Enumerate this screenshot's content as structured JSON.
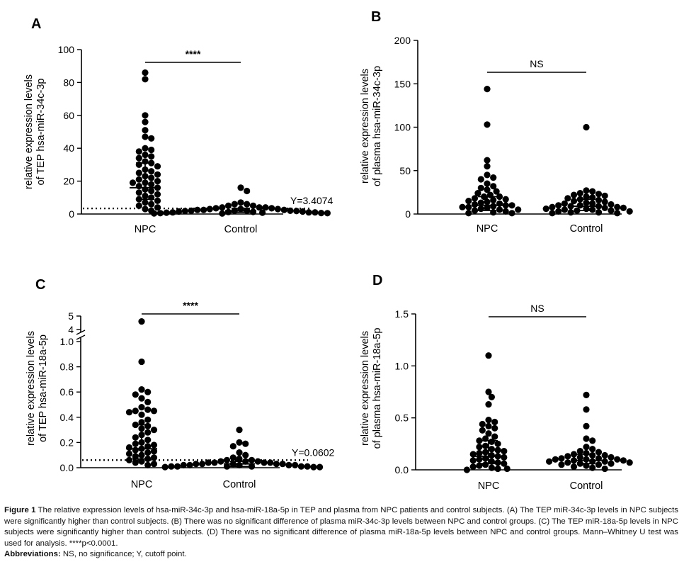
{
  "chart_data": [
    {
      "panel": "A",
      "type": "scatter",
      "ylabel_lines": [
        "relative expression levels",
        "of TEP hsa-miR-34c-3p"
      ],
      "ylim": [
        0,
        100
      ],
      "yticks": [
        0,
        20,
        40,
        60,
        80,
        100
      ],
      "categories": [
        "NPC",
        "Control"
      ],
      "cutoff": {
        "value": 3.4074,
        "label": "Y=3.4074"
      },
      "significance": "****",
      "series": [
        {
          "name": "NPC",
          "values": [
            86,
            82,
            60,
            56,
            51,
            47,
            46,
            40,
            39,
            38,
            36,
            35,
            34,
            32,
            31,
            30,
            29,
            27,
            26,
            25,
            24,
            23,
            22,
            21,
            20,
            19,
            19,
            18,
            17,
            16,
            15,
            14,
            13,
            12,
            11,
            10,
            9,
            8,
            7,
            6,
            5,
            4,
            3,
            2
          ],
          "median": 16,
          "q1": 9,
          "q3": 31
        },
        {
          "name": "Control",
          "values": [
            16,
            14,
            7,
            6,
            6,
            5,
            5,
            4,
            4,
            4,
            3.5,
            3.5,
            3,
            3,
            3,
            2.5,
            2.5,
            2.5,
            2,
            2,
            2,
            2,
            1.8,
            1.8,
            1.5,
            1.5,
            1.3,
            1.2,
            1,
            1,
            1,
            0.8,
            0.8,
            0.6,
            0.5,
            0.5,
            0.4,
            0.3
          ],
          "median": 2,
          "q1": 1,
          "q3": 3.5
        }
      ]
    },
    {
      "panel": "B",
      "type": "scatter",
      "ylabel_lines": [
        "relative expression levels",
        "of plasma hsa-miR-34c-3p"
      ],
      "ylim": [
        0,
        200
      ],
      "yticks": [
        0,
        50,
        100,
        150,
        200
      ],
      "categories": [
        "NPC",
        "Control"
      ],
      "significance": "NS",
      "series": [
        {
          "name": "NPC",
          "values": [
            144,
            103,
            62,
            55,
            45,
            42,
            40,
            35,
            32,
            30,
            28,
            26,
            24,
            22,
            20,
            20,
            18,
            17,
            16,
            15,
            14,
            13,
            12,
            11,
            10,
            10,
            9,
            8,
            8,
            7,
            6,
            5,
            5,
            4,
            3,
            2,
            1,
            1
          ],
          "median": 10,
          "q1": 4,
          "q3": 20
        },
        {
          "name": "Control",
          "values": [
            100,
            27,
            26,
            24,
            23,
            22,
            21,
            20,
            19,
            18,
            17,
            16,
            15,
            14,
            13,
            12,
            12,
            11,
            10,
            10,
            9,
            9,
            8,
            8,
            7,
            7,
            6,
            6,
            5,
            5,
            4,
            4,
            3,
            3,
            2,
            2,
            1,
            1
          ],
          "median": 9,
          "q1": 4,
          "q3": 17
        }
      ]
    },
    {
      "panel": "C",
      "type": "scatter",
      "ylabel_lines": [
        "relative expression levels",
        "of TEP hsa-miR-18a-5p"
      ],
      "ylim": [
        0,
        5
      ],
      "yticks_lower": [
        0.0,
        0.2,
        0.4,
        0.6,
        0.8,
        1.0
      ],
      "yticks_upper": [
        4,
        5
      ],
      "axis_break": [
        1.0,
        4.0
      ],
      "categories": [
        "NPC",
        "Control"
      ],
      "cutoff": {
        "value": 0.0602,
        "label": "Y=0.0602"
      },
      "significance": "****",
      "series": [
        {
          "name": "NPC",
          "values": [
            4.6,
            0.84,
            0.62,
            0.6,
            0.58,
            0.55,
            0.52,
            0.48,
            0.46,
            0.45,
            0.45,
            0.44,
            0.42,
            0.38,
            0.36,
            0.34,
            0.33,
            0.31,
            0.3,
            0.28,
            0.26,
            0.24,
            0.22,
            0.2,
            0.19,
            0.18,
            0.17,
            0.16,
            0.15,
            0.14,
            0.13,
            0.12,
            0.11,
            0.1,
            0.09,
            0.08,
            0.07,
            0.06,
            0.05,
            0.04,
            0.03,
            0.02
          ],
          "median": 0.15,
          "q1": 0.07,
          "q3": 0.34
        },
        {
          "name": "Control",
          "values": [
            0.3,
            0.2,
            0.19,
            0.17,
            0.12,
            0.1,
            0.08,
            0.07,
            0.06,
            0.06,
            0.05,
            0.05,
            0.05,
            0.04,
            0.04,
            0.04,
            0.04,
            0.03,
            0.03,
            0.03,
            0.03,
            0.03,
            0.02,
            0.02,
            0.02,
            0.02,
            0.02,
            0.01,
            0.01,
            0.01,
            0.01,
            0.01,
            0.01,
            0.005,
            0.005,
            0.005
          ],
          "median": 0.03,
          "q1": 0.01,
          "q3": 0.05
        }
      ]
    },
    {
      "panel": "D",
      "type": "scatter",
      "ylabel_lines": [
        "relative expression levels",
        "of plasma hsa-miR-18a-5p"
      ],
      "ylim": [
        0,
        1.5
      ],
      "yticks": [
        0.0,
        0.5,
        1.0,
        1.5
      ],
      "categories": [
        "NPC",
        "Control"
      ],
      "significance": "NS",
      "series": [
        {
          "name": "NPC",
          "values": [
            1.1,
            0.75,
            0.7,
            0.63,
            0.48,
            0.46,
            0.44,
            0.42,
            0.4,
            0.38,
            0.35,
            0.32,
            0.3,
            0.28,
            0.27,
            0.25,
            0.23,
            0.22,
            0.2,
            0.19,
            0.18,
            0.17,
            0.16,
            0.15,
            0.14,
            0.13,
            0.12,
            0.11,
            0.1,
            0.09,
            0.08,
            0.07,
            0.06,
            0.05,
            0.04,
            0.03,
            0.02,
            0.01,
            0.01,
            0.0
          ],
          "median": 0.13,
          "q1": 0.06,
          "q3": 0.28
        },
        {
          "name": "Control",
          "values": [
            0.72,
            0.58,
            0.42,
            0.3,
            0.28,
            0.22,
            0.2,
            0.18,
            0.17,
            0.16,
            0.15,
            0.14,
            0.14,
            0.13,
            0.12,
            0.12,
            0.11,
            0.11,
            0.1,
            0.1,
            0.1,
            0.09,
            0.09,
            0.08,
            0.08,
            0.08,
            0.07,
            0.07,
            0.06,
            0.06,
            0.05,
            0.05,
            0.04,
            0.03,
            0.02,
            0.01
          ],
          "median": 0.09,
          "q1": 0.06,
          "q3": 0.15
        }
      ]
    }
  ],
  "caption": {
    "figure_label": "Figure 1",
    "text": "The relative expression levels of hsa-miR-34c-3p and hsa-miR-18a-5p in TEP and plasma from NPC patients and control subjects. (A) The TEP miR-34c-3p levels in NPC subjects were significantly higher than control subjects. (B) There was no significant difference of plasma miR-34c-3p levels between NPC and control groups. (C) The TEP miR-18a-5p levels in NPC subjects were significantly higher than control subjects. (D) There was no significant difference of plasma miR-18a-5p levels between NPC and control groups. Mann–Whitney U test was used for analysis. ****p<0.0001.",
    "abbreviations_label": "Abbreviations:",
    "abbreviations_text": "NS, no significance; Y, cutoff point."
  }
}
